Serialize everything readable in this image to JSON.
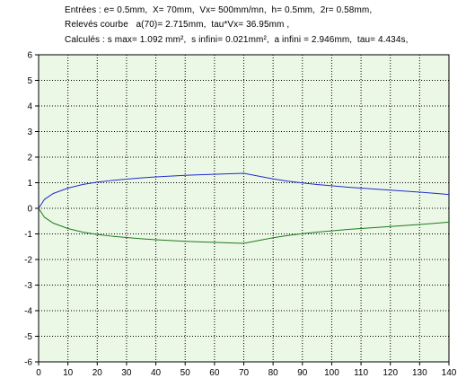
{
  "header": {
    "line1": "Entrées : e= 0.5mm,  X= 70mm,  Vx= 500mm/mn,  h= 0.5mm,  2r= 0.58mm,",
    "line2": "Relevés courbe   a(70)= 2.715mm,  tau*Vx= 36.95mm ,",
    "line3": "Calculés : s max= 1.092 mm²,  s infini= 0.021mm²,  a infini = 2.946mm,  tau= 4.434s,"
  },
  "colors": {
    "plot_background": "#ecf8e6",
    "grid": "#000000",
    "upper_curve": "#1f2ccf",
    "lower_curve": "#1f7a1f"
  },
  "chart_data": {
    "type": "line",
    "title": "",
    "xlabel": "",
    "ylabel": "",
    "xlim": [
      0,
      140
    ],
    "ylim": [
      -6,
      6
    ],
    "xticks": [
      0,
      10,
      20,
      30,
      40,
      50,
      60,
      70,
      80,
      90,
      100,
      110,
      120,
      130,
      140
    ],
    "yticks": [
      6,
      5,
      4,
      3,
      2,
      1,
      0,
      -1,
      -2,
      -3,
      -4,
      -5,
      -6
    ],
    "grid": true,
    "series": [
      {
        "color": "upper_curve",
        "x": [
          0,
          2,
          5,
          10,
          15,
          20,
          25,
          30,
          35,
          40,
          45,
          50,
          55,
          60,
          65,
          70,
          75,
          80,
          85,
          90,
          95,
          100,
          105,
          110,
          115,
          120,
          125,
          130,
          135,
          140
        ],
        "y": [
          0,
          0.35,
          0.58,
          0.79,
          0.93,
          1.02,
          1.09,
          1.14,
          1.19,
          1.23,
          1.26,
          1.29,
          1.31,
          1.33,
          1.35,
          1.37,
          1.26,
          1.15,
          1.06,
          0.99,
          0.93,
          0.88,
          0.83,
          0.79,
          0.75,
          0.71,
          0.67,
          0.63,
          0.59,
          0.54
        ]
      },
      {
        "color": "lower_curve",
        "x": [
          0,
          2,
          5,
          10,
          15,
          20,
          25,
          30,
          35,
          40,
          45,
          50,
          55,
          60,
          65,
          70,
          75,
          80,
          85,
          90,
          95,
          100,
          105,
          110,
          115,
          120,
          125,
          130,
          135,
          140
        ],
        "y": [
          0,
          -0.35,
          -0.58,
          -0.79,
          -0.93,
          -1.02,
          -1.09,
          -1.14,
          -1.19,
          -1.23,
          -1.26,
          -1.29,
          -1.31,
          -1.33,
          -1.35,
          -1.37,
          -1.26,
          -1.15,
          -1.06,
          -0.99,
          -0.93,
          -0.88,
          -0.83,
          -0.79,
          -0.75,
          -0.71,
          -0.67,
          -0.63,
          -0.59,
          -0.54
        ]
      }
    ]
  }
}
